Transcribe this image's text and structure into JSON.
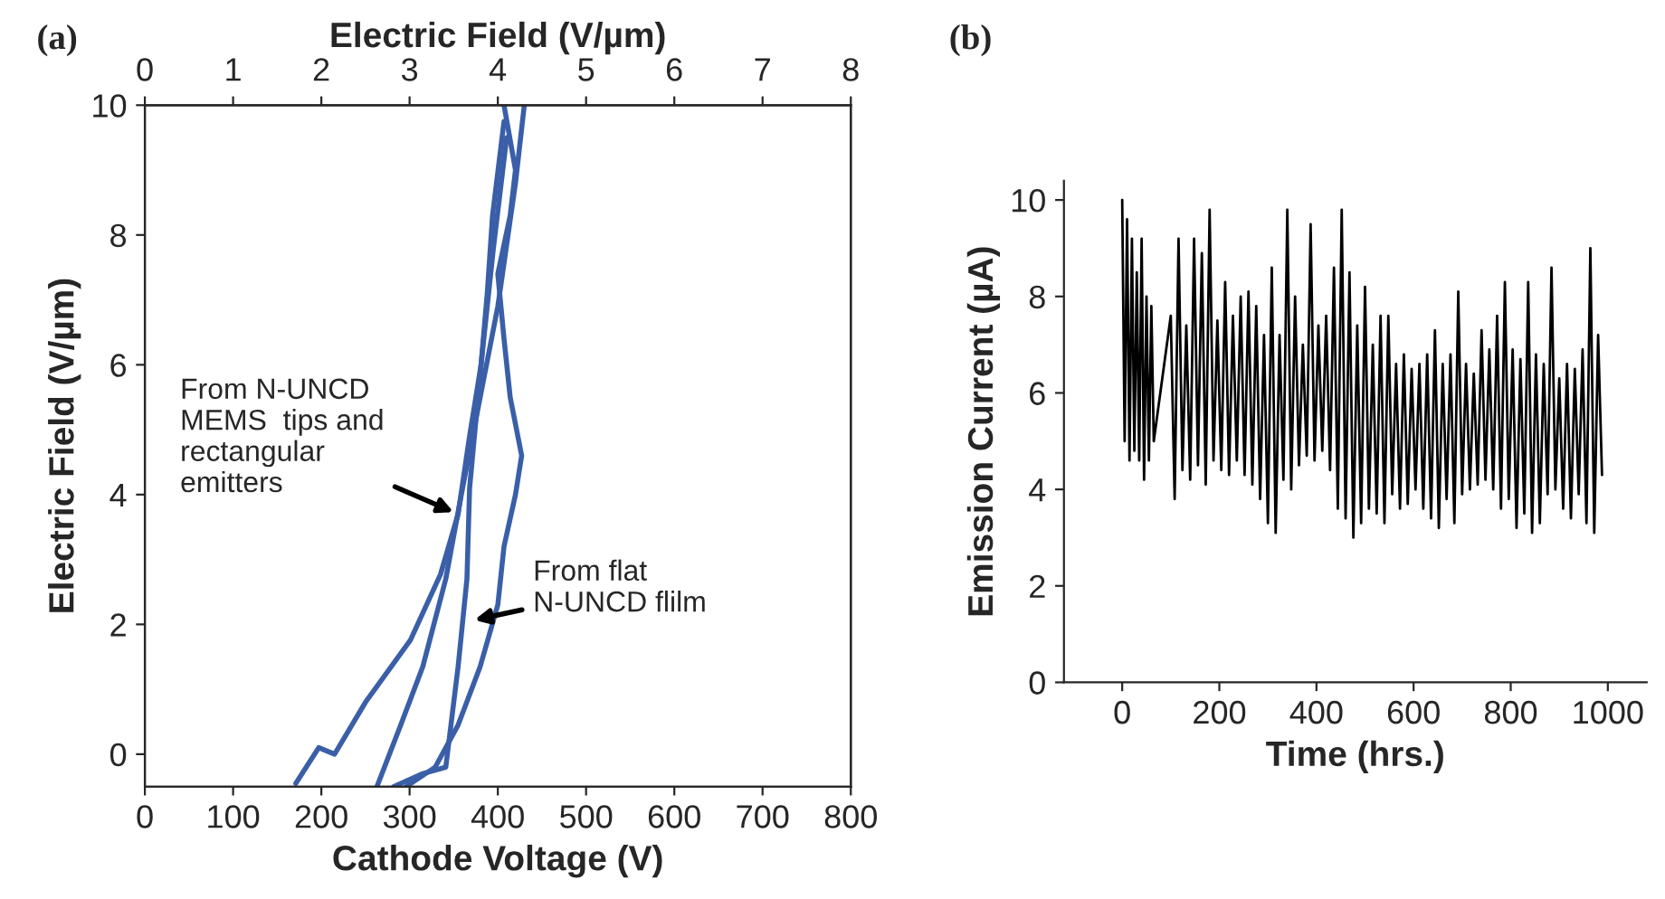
{
  "chart_data": [
    {
      "type": "line",
      "xlabel": "Cathode Voltage (V)",
      "ylabel": "Electric Field (V/µm)",
      "x2label": "Electric Field (V/µm)",
      "xlim": [
        0,
        800
      ],
      "xticks": [
        0,
        100,
        200,
        300,
        400,
        500,
        600,
        700,
        800
      ],
      "x2lim": [
        0,
        8
      ],
      "x2ticks": [
        0,
        1,
        2,
        3,
        4,
        5,
        6,
        7,
        8
      ],
      "ylim": [
        -0.5,
        10
      ],
      "yticks": [
        0,
        2,
        4,
        6,
        8,
        10
      ],
      "grid": false,
      "legend": false,
      "line_style": "solid",
      "marker": "none",
      "series": [
        {
          "color": "#3a5fa8",
          "x": [
            171,
            197,
            215,
            250,
            301,
            335,
            355,
            368,
            381,
            388,
            394,
            407
          ],
          "values": [
            -0.45,
            0.1,
            0.0,
            0.8,
            1.76,
            2.77,
            3.7,
            4.9,
            6.0,
            7.1,
            8.3,
            9.75
          ]
        },
        {
          "color": "#3a5fa8",
          "x": [
            263,
            290,
            315,
            341,
            360,
            380,
            400,
            420,
            430
          ],
          "values": [
            -0.5,
            0.45,
            1.35,
            2.7,
            4.1,
            5.5,
            6.9,
            8.8,
            10.0
          ]
        },
        {
          "color": "#3a5fa8",
          "x": [
            282,
            315,
            341,
            355,
            365,
            368,
            381,
            395,
            410
          ],
          "values": [
            -0.5,
            -0.3,
            -0.2,
            1.35,
            2.7,
            4.1,
            6.0,
            7.8,
            9.5
          ]
        },
        {
          "color": "#3a5fa8",
          "x": [
            296,
            329,
            355,
            380,
            400,
            407,
            420,
            427,
            414,
            407,
            400,
            414,
            420,
            407
          ],
          "values": [
            -0.5,
            -0.2,
            0.45,
            1.35,
            2.3,
            3.2,
            4.0,
            4.6,
            5.5,
            6.4,
            7.4,
            8.3,
            9.0,
            10.0
          ]
        }
      ],
      "annotations": [
        "(a)",
        {
          "text": "From N-UNCD\nMEMS  tips and\nrectangular\nemitters",
          "x": 355,
          "y": 3.7
        },
        {
          "text": "From flat\nN-UNCD flilm",
          "x": 368,
          "y": 2.05
        }
      ]
    },
    {
      "type": "line",
      "xlabel": "Time (hrs.)",
      "ylabel": "Emission Current (µA)",
      "xlim": [
        -120,
        1080
      ],
      "xticks": [
        0,
        200,
        400,
        600,
        800,
        1000
      ],
      "ylim": [
        0,
        10.4
      ],
      "yticks": [
        0,
        2,
        4,
        6,
        8,
        10
      ],
      "grid": false,
      "legend": false,
      "line_style": "solid",
      "marker": "none",
      "series": [
        {
          "color": "#000000",
          "x": [
            0,
            5,
            10,
            15,
            20,
            25,
            30,
            35,
            40,
            45,
            50,
            55,
            60,
            65,
            80,
            100,
            108,
            116,
            124,
            132,
            140,
            148,
            156,
            164,
            172,
            180,
            188,
            196,
            204,
            212,
            220,
            228,
            236,
            244,
            252,
            260,
            268,
            276,
            284,
            292,
            300,
            308,
            316,
            324,
            332,
            340,
            348,
            356,
            364,
            372,
            380,
            388,
            396,
            404,
            412,
            420,
            428,
            436,
            444,
            452,
            460,
            468,
            476,
            484,
            492,
            500,
            508,
            516,
            524,
            532,
            540,
            548,
            556,
            564,
            572,
            580,
            588,
            596,
            604,
            612,
            620,
            628,
            636,
            644,
            652,
            660,
            668,
            676,
            684,
            692,
            700,
            708,
            716,
            724,
            732,
            740,
            748,
            756,
            764,
            772,
            780,
            788,
            796,
            804,
            812,
            820,
            828,
            836,
            844,
            852,
            860,
            868,
            876,
            884,
            892,
            900,
            908,
            916,
            924,
            932,
            940,
            948,
            956,
            964,
            972,
            980,
            988
          ],
          "values": [
            10.0,
            5.0,
            9.6,
            4.6,
            9.2,
            4.8,
            8.5,
            4.6,
            9.2,
            4.2,
            8.0,
            4.6,
            7.8,
            5.0,
            null,
            7.6,
            3.8,
            9.2,
            4.4,
            7.4,
            4.2,
            9.2,
            4.5,
            8.9,
            4.1,
            9.8,
            4.6,
            7.5,
            4.4,
            8.3,
            4.3,
            7.6,
            4.6,
            8.0,
            4.3,
            8.1,
            4.1,
            7.8,
            3.8,
            7.2,
            3.3,
            8.6,
            3.1,
            7.2,
            4.2,
            9.8,
            4.0,
            8.0,
            4.5,
            7.0,
            4.7,
            9.5,
            4.6,
            7.4,
            4.8,
            7.6,
            4.4,
            8.6,
            3.6,
            9.8,
            3.4,
            8.5,
            3.0,
            7.4,
            3.3,
            8.2,
            3.6,
            7.0,
            3.5,
            7.6,
            3.3,
            7.6,
            3.9,
            6.6,
            3.6,
            6.8,
            3.7,
            6.5,
            4.0,
            6.6,
            3.6,
            6.8,
            3.4,
            7.3,
            3.2,
            6.6,
            3.8,
            6.8,
            3.3,
            8.1,
            3.9,
            6.6,
            4.0,
            6.4,
            4.1,
            7.3,
            4.2,
            6.9,
            4.0,
            7.6,
            3.6,
            8.3,
            3.8,
            6.9,
            3.2,
            6.7,
            3.5,
            8.3,
            3.1,
            6.8,
            3.3,
            6.6,
            3.9,
            8.6,
            4.0,
            6.3,
            3.6,
            6.6,
            3.4,
            6.5,
            3.9,
            6.9,
            3.3,
            9.0,
            3.1,
            7.2,
            4.3
          ]
        }
      ],
      "annotations": [
        "(b)"
      ]
    }
  ]
}
